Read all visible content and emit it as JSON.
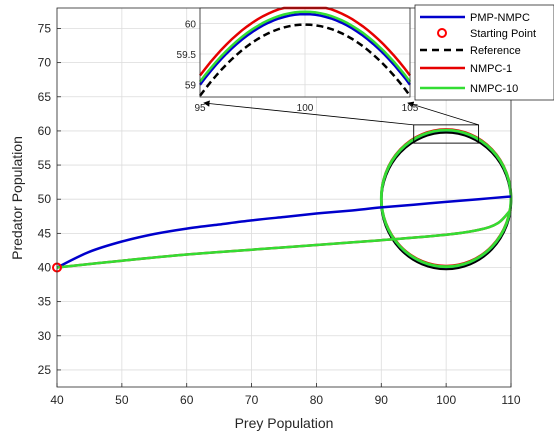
{
  "chart_data": [
    {
      "panel": "main",
      "type": "line",
      "xlabel": "Prey Population",
      "ylabel": "Predator Population",
      "xlim": [
        40,
        110
      ],
      "ylim": [
        22.5,
        78
      ],
      "xticks": [
        40,
        50,
        60,
        70,
        80,
        90,
        100,
        110
      ],
      "yticks": [
        25,
        30,
        35,
        40,
        45,
        50,
        55,
        60,
        65,
        70,
        75
      ],
      "grid": true,
      "legend_position": "top-right",
      "colors": {
        "pmp": "#0000cc",
        "start": "#ff0000",
        "reference": "#000000",
        "nmpc1": "#e60000",
        "nmpc10": "#33dd33"
      },
      "legend": [
        "PMP-NMPC",
        "Starting Point",
        "Reference",
        "NMPC-1",
        "NMPC-10"
      ],
      "series": [
        {
          "name": "PMP-NMPC",
          "style": "solid",
          "x": [
            40,
            45,
            50,
            55,
            60,
            65,
            70,
            75,
            80,
            85,
            90,
            95,
            100,
            105,
            110
          ],
          "y": [
            40,
            42.3,
            43.8,
            44.9,
            45.7,
            46.3,
            46.9,
            47.4,
            47.9,
            48.3,
            48.8,
            49.2,
            49.6,
            50.0,
            50.4
          ]
        },
        {
          "name": "Starting Point",
          "style": "marker",
          "x": [
            40
          ],
          "y": [
            40
          ]
        },
        {
          "name": "Reference",
          "style": "dashed",
          "circle": {
            "center": [
              100,
              50
            ],
            "radius_x": 10,
            "radius_y": 10
          }
        },
        {
          "name": "NMPC-1",
          "style": "solid",
          "x": [
            40,
            50,
            60,
            70,
            80,
            90,
            100,
            105,
            108,
            110
          ],
          "y": [
            40,
            41.0,
            41.9,
            42.6,
            43.3,
            44.0,
            44.8,
            45.5,
            46.5,
            48.5
          ]
        },
        {
          "name": "NMPC-10",
          "style": "solid",
          "x": [
            40,
            50,
            60,
            70,
            80,
            90,
            100,
            105,
            108,
            110
          ],
          "y": [
            40,
            41.0,
            41.9,
            42.6,
            43.3,
            44.0,
            44.8,
            45.5,
            46.5,
            48.5
          ]
        }
      ]
    },
    {
      "panel": "inset",
      "type": "line",
      "xlim": [
        95,
        105
      ],
      "ylim": [
        58.8,
        60.25
      ],
      "xticks": [
        95,
        100,
        105
      ],
      "yticks": [
        59,
        59.5,
        60
      ],
      "ytick_labels": [
        "59",
        "59.5",
        "60"
      ],
      "zoom_box": {
        "x": [
          95,
          105
        ],
        "y": [
          58.8,
          60.3
        ]
      },
      "series": [
        {
          "name": "PMP-NMPC",
          "peak": 60.15,
          "edge": 59.0
        },
        {
          "name": "Reference",
          "peak": 59.98,
          "edge": 58.82
        },
        {
          "name": "NMPC-1",
          "peak": 60.3,
          "edge": 59.15
        },
        {
          "name": "NMPC-10",
          "peak": 60.19,
          "edge": 59.05
        }
      ]
    }
  ]
}
